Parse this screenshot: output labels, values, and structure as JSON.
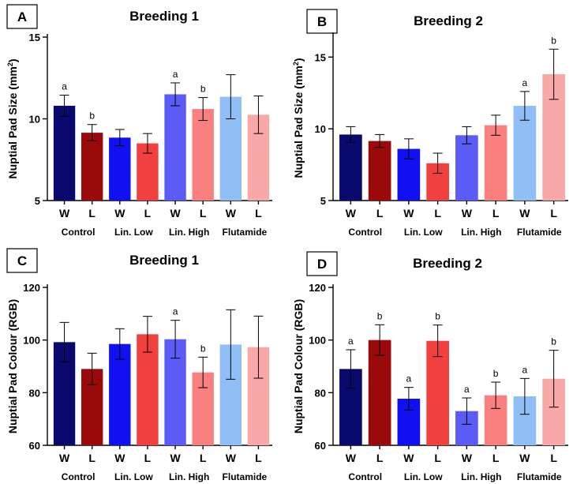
{
  "chart_data": [
    {
      "panel": "A",
      "type": "bar",
      "title": "Breeding 1",
      "ylabel": "Nuptial Pad Size (mm",
      "ylabel_sup": "2",
      "ylabel_end": ")",
      "ylim": [
        5,
        15
      ],
      "yticks": [
        5,
        10,
        15
      ],
      "categories": [
        "W",
        "L",
        "W",
        "L",
        "W",
        "L",
        "W",
        "L"
      ],
      "groups": [
        "Control",
        "Lin. Low",
        "Lin. High",
        "Flutamide"
      ],
      "colors": [
        "#0a0a6e",
        "#9b0a0a",
        "#1010f0",
        "#f04040",
        "#5b5bf5",
        "#fa8080",
        "#90bff5",
        "#f9a8a8"
      ],
      "values": [
        10.8,
        9.15,
        8.85,
        8.5,
        11.5,
        10.6,
        11.35,
        10.25
      ],
      "errors": [
        0.65,
        0.5,
        0.5,
        0.6,
        0.7,
        0.7,
        1.35,
        1.15
      ],
      "letters": [
        "a",
        "b",
        "",
        "",
        "a",
        "b",
        "",
        ""
      ]
    },
    {
      "panel": "B",
      "type": "bar",
      "title": "Breeding 2",
      "ylabel": "Nuptial Pad Size (mm",
      "ylabel_sup": "2",
      "ylabel_end": ")",
      "ylim": [
        5,
        16.5
      ],
      "yticks": [
        5,
        10,
        15
      ],
      "categories": [
        "W",
        "L",
        "W",
        "L",
        "W",
        "L",
        "W",
        "L"
      ],
      "groups": [
        "Control",
        "Lin. Low",
        "Lin. High",
        "Flutamide"
      ],
      "colors": [
        "#0a0a6e",
        "#9b0a0a",
        "#1010f0",
        "#f04040",
        "#5b5bf5",
        "#fa8080",
        "#90bff5",
        "#f9a8a8"
      ],
      "values": [
        9.6,
        9.15,
        8.6,
        7.6,
        9.55,
        10.25,
        11.6,
        13.8
      ],
      "errors": [
        0.55,
        0.45,
        0.7,
        0.7,
        0.6,
        0.7,
        1.0,
        1.75
      ],
      "letters": [
        "",
        "",
        "",
        "",
        "",
        "",
        "a",
        "b"
      ]
    },
    {
      "panel": "C",
      "type": "bar",
      "title": "Breeding 1",
      "ylabel": "Nuptial Pad Colour (RGB)",
      "ylim": [
        60,
        120
      ],
      "yticks": [
        60,
        80,
        100,
        120
      ],
      "categories": [
        "W",
        "L",
        "W",
        "L",
        "W",
        "L",
        "W",
        "L"
      ],
      "groups": [
        "Control",
        "Lin. Low",
        "Lin. High",
        "Flutamide"
      ],
      "colors": [
        "#0a0a6e",
        "#9b0a0a",
        "#1010f0",
        "#f04040",
        "#5b5bf5",
        "#fa8080",
        "#90bff5",
        "#f9a8a8"
      ],
      "values": [
        99.2,
        89.0,
        98.5,
        102.2,
        100.3,
        87.7,
        98.3,
        97.3
      ],
      "errors": [
        7.5,
        6.0,
        5.8,
        6.8,
        7.2,
        5.8,
        13.2,
        11.8
      ],
      "letters": [
        "",
        "",
        "",
        "",
        "a",
        "b",
        "",
        ""
      ]
    },
    {
      "panel": "D",
      "type": "bar",
      "title": "Breeding 2",
      "ylabel": "Nuptial Pad Colour (RGB)",
      "ylim": [
        60,
        120
      ],
      "yticks": [
        60,
        80,
        100,
        120
      ],
      "categories": [
        "W",
        "L",
        "W",
        "L",
        "W",
        "L",
        "W",
        "L"
      ],
      "groups": [
        "Control",
        "Lin. Low",
        "Lin. High",
        "Flutamide"
      ],
      "colors": [
        "#0a0a6e",
        "#9b0a0a",
        "#1010f0",
        "#f04040",
        "#5b5bf5",
        "#fa8080",
        "#90bff5",
        "#f9a8a8"
      ],
      "values": [
        89.0,
        100.0,
        77.7,
        99.7,
        73.0,
        79.0,
        78.6,
        85.3
      ],
      "errors": [
        7.3,
        5.8,
        4.3,
        6.0,
        5.0,
        5.0,
        6.8,
        10.8
      ],
      "letters": [
        "a",
        "b",
        "a",
        "b",
        "a",
        "b",
        "a",
        "b"
      ]
    }
  ]
}
